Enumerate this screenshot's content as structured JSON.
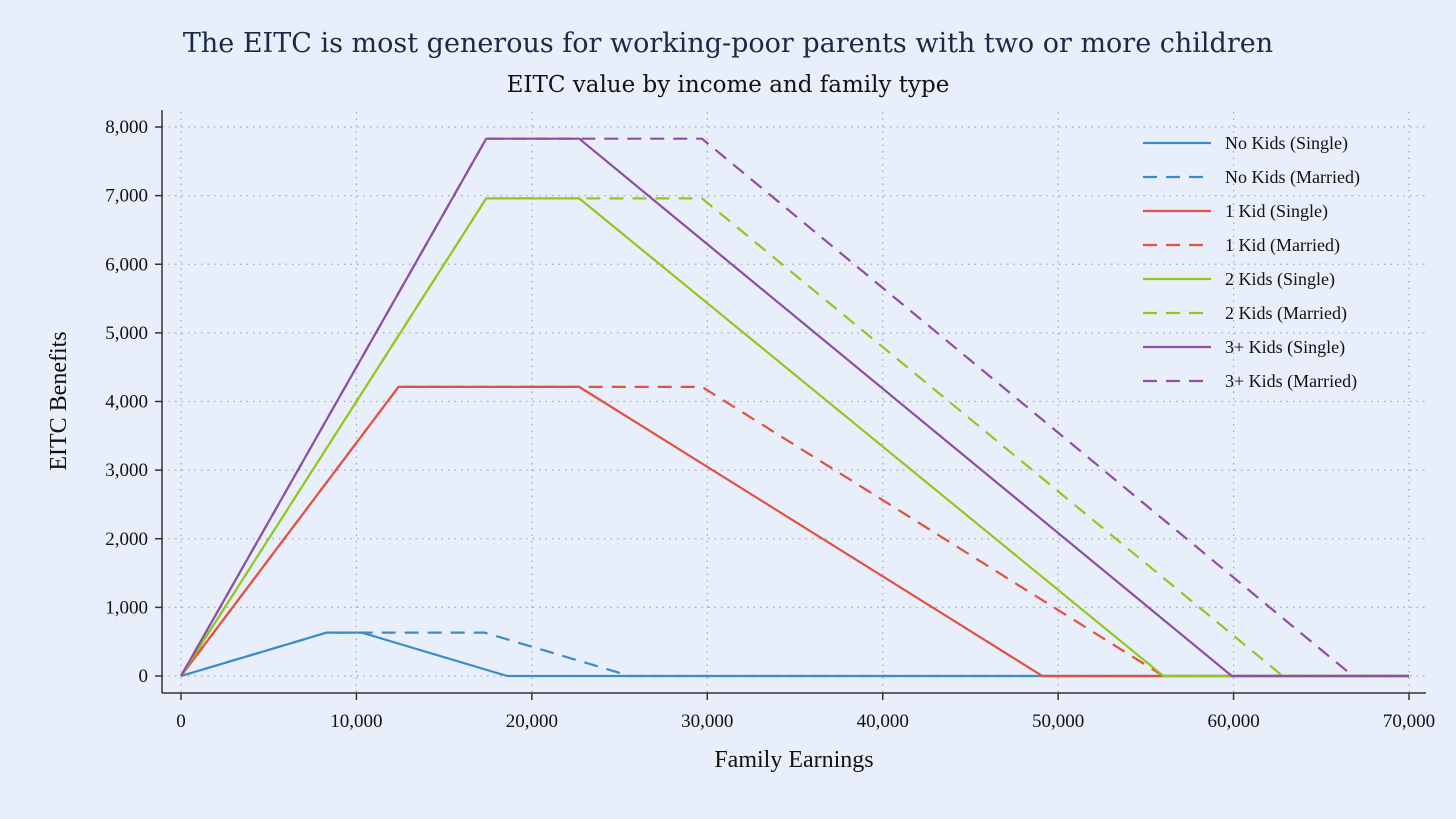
{
  "title": "The EITC is most generous for working-poor parents with two or more children",
  "subtitle": "EITC value by income and family type",
  "chart_data": {
    "type": "line",
    "xlabel": "Family Earnings",
    "ylabel": "EITC Benefits",
    "xlim": [
      0,
      70000
    ],
    "ylim": [
      0,
      8000
    ],
    "xticks": [
      0,
      10000,
      20000,
      30000,
      40000,
      50000,
      60000,
      70000
    ],
    "xtick_labels": [
      "0",
      "10,000",
      "20,000",
      "30,000",
      "40,000",
      "50,000",
      "60,000",
      "70,000"
    ],
    "yticks": [
      0,
      1000,
      2000,
      3000,
      4000,
      5000,
      6000,
      7000,
      8000
    ],
    "ytick_labels": [
      "0",
      "1,000",
      "2,000",
      "3,000",
      "4,000",
      "5,000",
      "6,000",
      "7,000",
      "8,000"
    ],
    "grid": true,
    "legend_position": "top-right",
    "series": [
      {
        "name": "No Kids (Single)",
        "color": "#3a8ec8",
        "dash": "solid",
        "x": [
          0,
          8300,
          10300,
          18600,
          70000
        ],
        "y": [
          0,
          632,
          632,
          0,
          0
        ]
      },
      {
        "name": "No Kids (Married)",
        "color": "#3a8ec8",
        "dash": "dashed",
        "x": [
          0,
          8300,
          17300,
          25600,
          70000
        ],
        "y": [
          0,
          632,
          632,
          0,
          0
        ]
      },
      {
        "name": "1 Kid (Single)",
        "color": "#e0513f",
        "dash": "solid",
        "x": [
          0,
          12400,
          22700,
          49100,
          70000
        ],
        "y": [
          0,
          4213,
          4213,
          0,
          0
        ]
      },
      {
        "name": "1 Kid (Married)",
        "color": "#e0513f",
        "dash": "dashed",
        "x": [
          0,
          12400,
          29700,
          56000,
          70000
        ],
        "y": [
          0,
          4213,
          4213,
          0,
          0
        ]
      },
      {
        "name": "2 Kids (Single)",
        "color": "#8fc91e",
        "dash": "solid",
        "x": [
          0,
          17400,
          22700,
          56000,
          70000
        ],
        "y": [
          0,
          6960,
          6960,
          0,
          0
        ]
      },
      {
        "name": "2 Kids (Married)",
        "color": "#8fc91e",
        "dash": "dashed",
        "x": [
          0,
          17400,
          29700,
          62800,
          70000
        ],
        "y": [
          0,
          6960,
          6960,
          0,
          0
        ]
      },
      {
        "name": "3+ Kids (Single)",
        "color": "#8e4fa3",
        "dash": "solid",
        "x": [
          0,
          17400,
          22700,
          59900,
          70000
        ],
        "y": [
          0,
          7830,
          7830,
          0,
          0
        ]
      },
      {
        "name": "3+ Kids (Married)",
        "color": "#8e4fa3",
        "dash": "dashed",
        "x": [
          0,
          17400,
          29700,
          66800,
          70000
        ],
        "y": [
          0,
          7830,
          7830,
          0,
          0
        ]
      }
    ]
  }
}
